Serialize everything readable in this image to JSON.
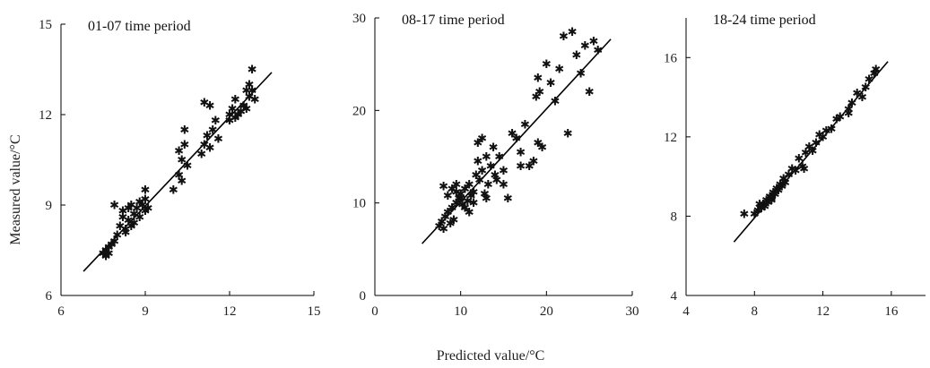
{
  "xlabel": "Predicted value/°C",
  "ylabel": "Measured value/°C",
  "marker_glyph": "✱",
  "chart_data": [
    {
      "type": "scatter",
      "title": "01-07 time period",
      "xlim": [
        6,
        15
      ],
      "ylim": [
        6,
        15
      ],
      "xticks": [
        6,
        9,
        12,
        15
      ],
      "yticks": [
        6,
        9,
        12,
        15
      ],
      "fit_line": [
        [
          6.8,
          6.8
        ],
        [
          13.5,
          13.4
        ]
      ],
      "points": [
        [
          7.5,
          7.4
        ],
        [
          7.6,
          7.5
        ],
        [
          7.6,
          7.3
        ],
        [
          7.7,
          7.6
        ],
        [
          7.8,
          7.7
        ],
        [
          7.9,
          7.8
        ],
        [
          8.0,
          8.0
        ],
        [
          7.7,
          7.4
        ],
        [
          8.1,
          8.3
        ],
        [
          8.2,
          8.6
        ],
        [
          8.3,
          8.1
        ],
        [
          8.4,
          8.5
        ],
        [
          8.5,
          8.3
        ],
        [
          8.6,
          8.7
        ],
        [
          8.7,
          8.9
        ],
        [
          8.8,
          8.6
        ],
        [
          8.9,
          9.0
        ],
        [
          9.0,
          9.2
        ],
        [
          9.1,
          8.9
        ],
        [
          9.0,
          8.8
        ],
        [
          8.5,
          9.0
        ],
        [
          8.2,
          8.8
        ],
        [
          7.9,
          9.0
        ],
        [
          8.4,
          8.9
        ],
        [
          8.6,
          8.4
        ],
        [
          8.8,
          9.1
        ],
        [
          9.0,
          9.5
        ],
        [
          8.3,
          8.2
        ],
        [
          10.0,
          9.5
        ],
        [
          10.2,
          10.0
        ],
        [
          10.3,
          10.5
        ],
        [
          10.2,
          10.8
        ],
        [
          10.4,
          11.0
        ],
        [
          10.4,
          11.5
        ],
        [
          10.5,
          10.3
        ],
        [
          10.3,
          9.8
        ],
        [
          11.0,
          10.7
        ],
        [
          11.1,
          11.0
        ],
        [
          11.2,
          11.3
        ],
        [
          11.1,
          12.4
        ],
        [
          11.3,
          12.3
        ],
        [
          11.4,
          11.5
        ],
        [
          11.5,
          11.8
        ],
        [
          11.6,
          11.2
        ],
        [
          11.3,
          10.9
        ],
        [
          12.0,
          12.0
        ],
        [
          12.1,
          12.2
        ],
        [
          12.2,
          12.5
        ],
        [
          12.3,
          12.0
        ],
        [
          12.0,
          11.8
        ],
        [
          12.5,
          12.3
        ],
        [
          12.6,
          12.8
        ],
        [
          12.7,
          13.0
        ],
        [
          12.8,
          13.5
        ],
        [
          12.7,
          12.6
        ],
        [
          12.8,
          12.8
        ],
        [
          12.6,
          12.2
        ],
        [
          12.9,
          12.5
        ],
        [
          12.4,
          12.1
        ],
        [
          12.2,
          11.9
        ]
      ]
    },
    {
      "type": "scatter",
      "title": "08-17 time period",
      "xlim": [
        0,
        30
      ],
      "ylim": [
        0,
        30
      ],
      "xticks": [
        0,
        10,
        20,
        30
      ],
      "yticks": [
        0,
        10,
        20,
        30
      ],
      "fit_line": [
        [
          5.5,
          5.6
        ],
        [
          27.5,
          27.7
        ]
      ],
      "points": [
        [
          7.5,
          7.5
        ],
        [
          7.8,
          8.0
        ],
        [
          8.0,
          7.2
        ],
        [
          8.2,
          8.5
        ],
        [
          8.5,
          9.0
        ],
        [
          8.8,
          7.8
        ],
        [
          9.0,
          9.5
        ],
        [
          9.2,
          8.2
        ],
        [
          9.5,
          10.0
        ],
        [
          9.8,
          10.5
        ],
        [
          10.0,
          11.0
        ],
        [
          10.2,
          9.8
        ],
        [
          10.5,
          11.5
        ],
        [
          10.8,
          10.2
        ],
        [
          11.0,
          12.0
        ],
        [
          11.2,
          10.8
        ],
        [
          11.5,
          11.2
        ],
        [
          11.8,
          13.0
        ],
        [
          12.0,
          14.5
        ],
        [
          12.2,
          12.5
        ],
        [
          12.5,
          13.5
        ],
        [
          12.8,
          11.0
        ],
        [
          13.0,
          15.0
        ],
        [
          13.2,
          12.0
        ],
        [
          13.5,
          14.0
        ],
        [
          13.8,
          16.0
        ],
        [
          14.0,
          13.0
        ],
        [
          14.2,
          12.5
        ],
        [
          8.0,
          11.8
        ],
        [
          9.0,
          11.5
        ],
        [
          9.5,
          12.0
        ],
        [
          10.5,
          9.5
        ],
        [
          11.0,
          9.0
        ],
        [
          11.5,
          10.0
        ],
        [
          12.0,
          16.5
        ],
        [
          12.5,
          17.0
        ],
        [
          13.0,
          10.5
        ],
        [
          15.0,
          12.0
        ],
        [
          15.5,
          10.5
        ],
        [
          16.0,
          17.5
        ],
        [
          16.5,
          17.0
        ],
        [
          17.0,
          14.0
        ],
        [
          17.5,
          18.5
        ],
        [
          18.0,
          14.0
        ],
        [
          18.5,
          14.5
        ],
        [
          19.0,
          16.5
        ],
        [
          19.5,
          16.0
        ],
        [
          18.8,
          21.5
        ],
        [
          19.2,
          22.0
        ],
        [
          19.0,
          23.5
        ],
        [
          20.5,
          23.0
        ],
        [
          20.0,
          25.0
        ],
        [
          21.5,
          24.5
        ],
        [
          22.0,
          28.0
        ],
        [
          22.5,
          17.5
        ],
        [
          23.0,
          28.5
        ],
        [
          23.5,
          26.0
        ],
        [
          24.0,
          24.0
        ],
        [
          24.5,
          27.0
        ],
        [
          25.0,
          22.0
        ],
        [
          25.5,
          27.5
        ],
        [
          26.0,
          26.5
        ],
        [
          21.0,
          21.0
        ],
        [
          17.0,
          15.5
        ],
        [
          15.0,
          13.5
        ],
        [
          14.5,
          15.0
        ],
        [
          10.0,
          10.5
        ],
        [
          9.5,
          11.2
        ],
        [
          8.5,
          10.8
        ]
      ]
    },
    {
      "type": "scatter",
      "title": "18-24 time period",
      "xlim": [
        4,
        18
      ],
      "ylim": [
        4,
        18
      ],
      "xticks": [
        4,
        8,
        12,
        16
      ],
      "yticks": [
        4,
        8,
        12,
        16
      ],
      "fit_line": [
        [
          6.8,
          6.7
        ],
        [
          15.8,
          15.8
        ]
      ],
      "points": [
        [
          7.4,
          8.1
        ],
        [
          8.0,
          8.1
        ],
        [
          8.2,
          8.3
        ],
        [
          8.4,
          8.4
        ],
        [
          8.5,
          8.6
        ],
        [
          8.6,
          8.5
        ],
        [
          8.7,
          8.8
        ],
        [
          8.8,
          8.7
        ],
        [
          8.9,
          9.0
        ],
        [
          9.0,
          8.9
        ],
        [
          9.1,
          9.2
        ],
        [
          9.2,
          9.1
        ],
        [
          9.3,
          9.4
        ],
        [
          9.4,
          9.3
        ],
        [
          9.5,
          9.6
        ],
        [
          9.6,
          9.5
        ],
        [
          9.7,
          9.9
        ],
        [
          9.8,
          9.7
        ],
        [
          10.0,
          10.1
        ],
        [
          10.2,
          10.4
        ],
        [
          10.4,
          10.3
        ],
        [
          10.6,
          10.9
        ],
        [
          10.8,
          10.5
        ],
        [
          11.0,
          11.2
        ],
        [
          11.2,
          11.5
        ],
        [
          11.4,
          11.3
        ],
        [
          11.6,
          11.7
        ],
        [
          12.0,
          12.0
        ],
        [
          12.2,
          12.3
        ],
        [
          12.5,
          12.4
        ],
        [
          12.8,
          12.9
        ],
        [
          13.0,
          13.0
        ],
        [
          13.5,
          13.4
        ],
        [
          13.7,
          13.7
        ],
        [
          14.0,
          14.2
        ],
        [
          14.3,
          14.0
        ],
        [
          14.5,
          14.5
        ],
        [
          14.7,
          14.9
        ],
        [
          15.0,
          15.2
        ],
        [
          15.1,
          15.4
        ],
        [
          13.5,
          13.2
        ],
        [
          10.9,
          10.4
        ],
        [
          9.0,
          8.8
        ],
        [
          8.3,
          8.6
        ],
        [
          11.8,
          12.1
        ]
      ]
    }
  ]
}
